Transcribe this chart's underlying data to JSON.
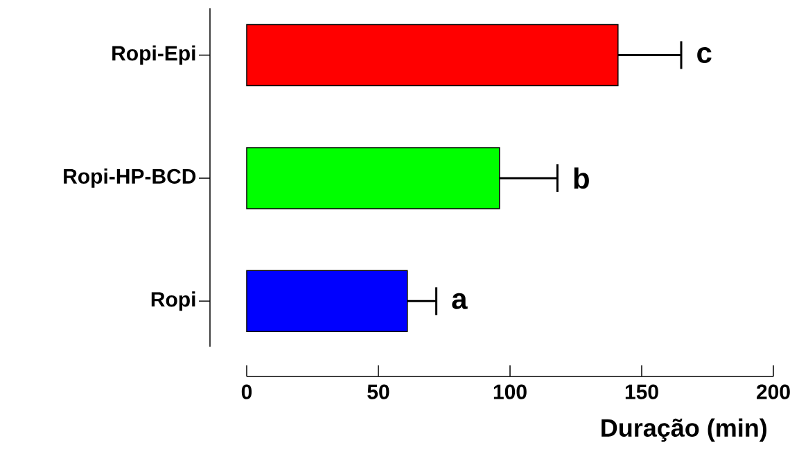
{
  "chart_data": {
    "type": "bar",
    "orientation": "horizontal",
    "xlabel": "Duração (min)",
    "categories": [
      "Ropi-Epi",
      "Ropi-HP-BCD",
      "Ropi"
    ],
    "values": [
      141,
      96,
      61
    ],
    "colors": [
      "#ff0000",
      "#00ff00",
      "#0000ff"
    ],
    "errors": [
      [
        141,
        165
      ],
      [
        96,
        118
      ],
      [
        61,
        72
      ]
    ],
    "xlim": [
      0,
      200
    ],
    "xticks": [
      0,
      50,
      100,
      150,
      200
    ],
    "annotations": [
      "c",
      "b",
      "a"
    ],
    "grid": false
  }
}
